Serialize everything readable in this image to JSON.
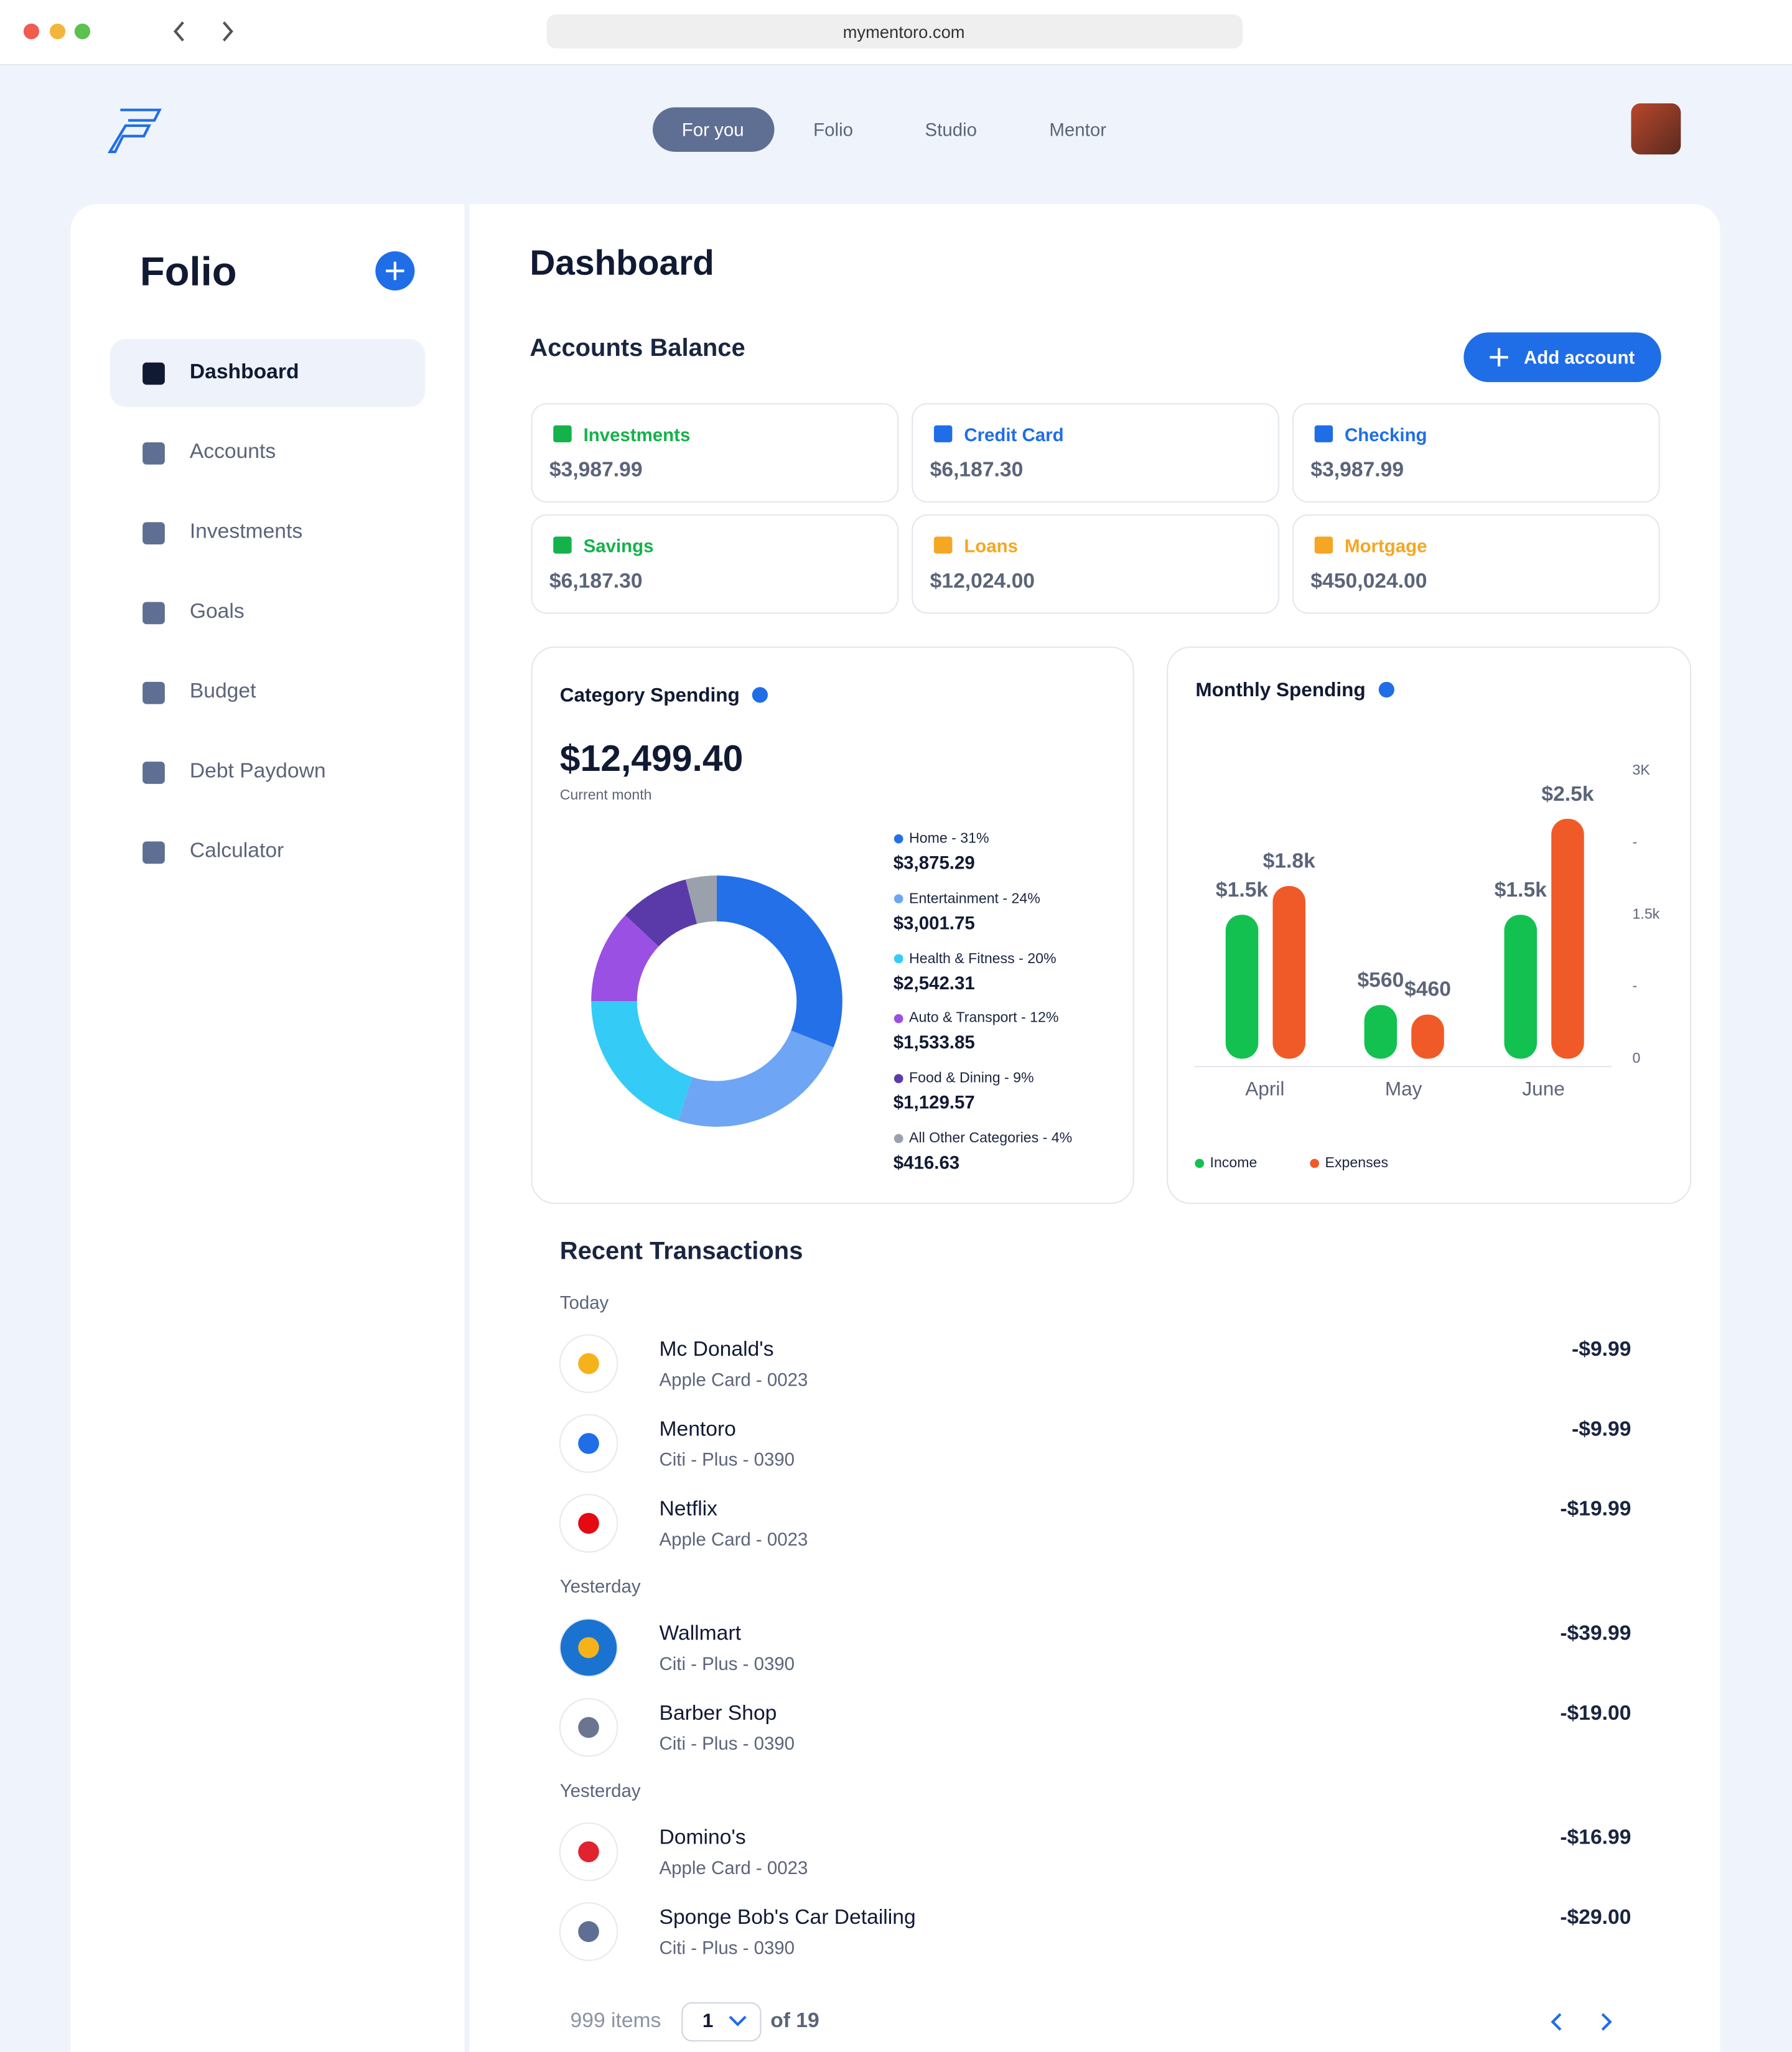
{
  "browser": {
    "url": "mymentoro.com"
  },
  "nav": {
    "items": [
      "For you",
      "Folio",
      "Studio",
      "Mentor"
    ],
    "active": 0
  },
  "sidebar": {
    "title": "Folio",
    "items": [
      "Dashboard",
      "Accounts",
      "Investments",
      "Goals",
      "Budget",
      "Debt Paydown",
      "Calculator"
    ],
    "active": 0
  },
  "dashboard": {
    "title": "Dashboard",
    "accounts": {
      "title": "Accounts Balance",
      "button": "Add account",
      "items": [
        {
          "name": "Investments",
          "balance": "$3,987.99",
          "color": "#14b24a"
        },
        {
          "name": "Credit Card",
          "balance": "$6,187.30",
          "color": "#1f6ee8"
        },
        {
          "name": "Checking",
          "balance": "$3,987.99",
          "color": "#1f6ee8"
        },
        {
          "name": "Savings",
          "balance": "$6,187.30",
          "color": "#14b24a"
        },
        {
          "name": "Loans",
          "balance": "$12,024.00",
          "color": "#f5a623"
        },
        {
          "name": "Mortgage",
          "balance": "$450,024.00",
          "color": "#f5a623"
        }
      ]
    },
    "category_spending": {
      "type": "pie",
      "title": "Category Spending",
      "total": "$12,499.40",
      "subtitle": "Current month",
      "segments": [
        {
          "label": "Home - 31%",
          "value": 31,
          "amount": "$3,875.29",
          "color": "#2470e8"
        },
        {
          "label": "Entertainment - 24%",
          "value": 24,
          "amount": "$3,001.75",
          "color": "#6ea6f5"
        },
        {
          "label": "Health & Fitness - 20%",
          "value": 20,
          "amount": "$2,542.31",
          "color": "#34ccf7"
        },
        {
          "label": "Auto & Transport - 12%",
          "value": 12,
          "amount": "$1,533.85",
          "color": "#9a50e3"
        },
        {
          "label": "Food & Dining - 9%",
          "value": 9,
          "amount": "$1,129.57",
          "color": "#5a3aa8"
        },
        {
          "label": "All Other Categories - 4%",
          "value": 4,
          "amount": "$416.63",
          "color": "#9aa1ad"
        }
      ]
    },
    "monthly_spending": {
      "type": "bar",
      "title": "Monthly Spending",
      "categories": [
        "April",
        "May",
        "June"
      ],
      "series": [
        {
          "name": "Income",
          "color": "#13c150",
          "values": [
            1500,
            560,
            1500
          ],
          "value_labels": [
            "$1.5k",
            "$560",
            "$1.5k"
          ]
        },
        {
          "name": "Expenses",
          "color": "#f05a28",
          "values": [
            1800,
            460,
            2500
          ],
          "value_labels": [
            "$1.8k",
            "$460",
            "$2.5k"
          ]
        }
      ],
      "ylim": [
        0,
        3000
      ],
      "yticks": [
        0,
        {
          "value": 750,
          "label": "-"
        },
        {
          "value": 1500,
          "label": "1.5k"
        },
        {
          "value": 2250,
          "label": "-"
        },
        {
          "value": 3000,
          "label": "3K"
        }
      ]
    }
  },
  "transactions": {
    "title": "Recent Transactions",
    "groups": [
      {
        "label": "Today",
        "items": [
          {
            "name": "Mc Donald's",
            "account": "Apple Card - 0023",
            "amount": "-$9.99"
          },
          {
            "name": "Mentoro",
            "account": "Citi - Plus - 0390",
            "amount": "-$9.99"
          },
          {
            "name": "Netflix",
            "account": "Apple Card - 0023",
            "amount": "-$19.99"
          }
        ]
      },
      {
        "label": "Yesterday",
        "items": [
          {
            "name": "Wallmart",
            "account": "Citi - Plus - 0390",
            "amount": "-$39.99"
          },
          {
            "name": "Barber Shop",
            "account": "Citi - Plus - 0390",
            "amount": "-$19.00"
          }
        ]
      },
      {
        "label": "Yesterday",
        "items": [
          {
            "name": "Domino's",
            "account": "Apple Card - 0023",
            "amount": "-$16.99"
          },
          {
            "name": "Sponge Bob's Car Detailing",
            "account": "Citi - Plus - 0390",
            "amount": "-$29.00"
          }
        ]
      }
    ]
  },
  "pagination": {
    "count": "999 items",
    "page": "1",
    "total": "of 19"
  }
}
